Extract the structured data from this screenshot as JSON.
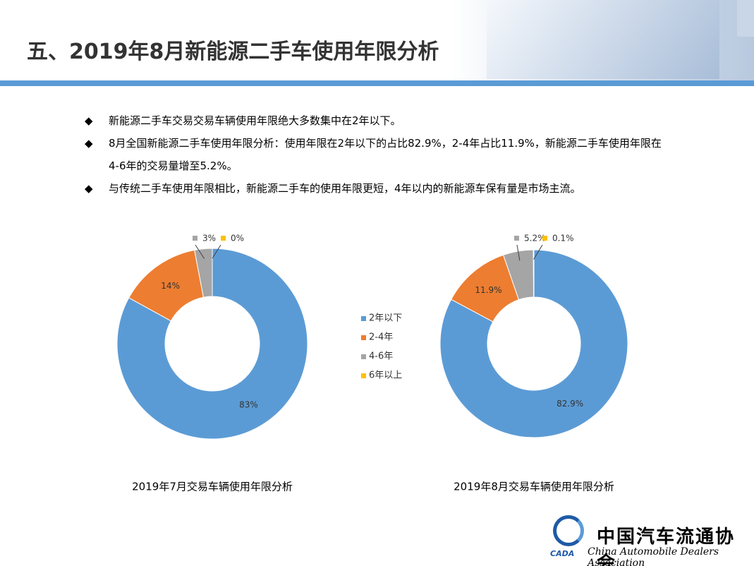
{
  "header": {
    "title": "五、2019年8月新能源二手车使用年限分析"
  },
  "bullets": [
    "新能源二手车交易交易车辆使用年限绝大多数集中在2年以下。",
    "8月全国新能源二手车使用年限分析：使用年限在2年以下的占比82.9%，2-4年占比11.9%，新能源二手车使用年限在4-6年的交易量增至5.2%。",
    "与传统二手车使用年限相比，新能源二手车的使用年限更短，4年以内的新能源车保有量是市场主流。"
  ],
  "chart_data": {
    "type": "pie",
    "categories": [
      "2年以下",
      "2-4年",
      "4-6年",
      "6年以上"
    ],
    "colors": [
      "#5b9bd5",
      "#ed7d31",
      "#a5a5a5",
      "#ffc000"
    ],
    "series": [
      {
        "name": "2019年7月交易车辆使用年限分析",
        "values": [
          83,
          14,
          3,
          0
        ]
      },
      {
        "name": "2019年8月交易车辆使用年限分析",
        "values": [
          82.9,
          11.9,
          5.2,
          0.1
        ]
      }
    ]
  },
  "footer": {
    "org_cn": "中国汽车流通协会",
    "org_en": "China Automobile Dealers Association",
    "abbr": "CADA"
  }
}
